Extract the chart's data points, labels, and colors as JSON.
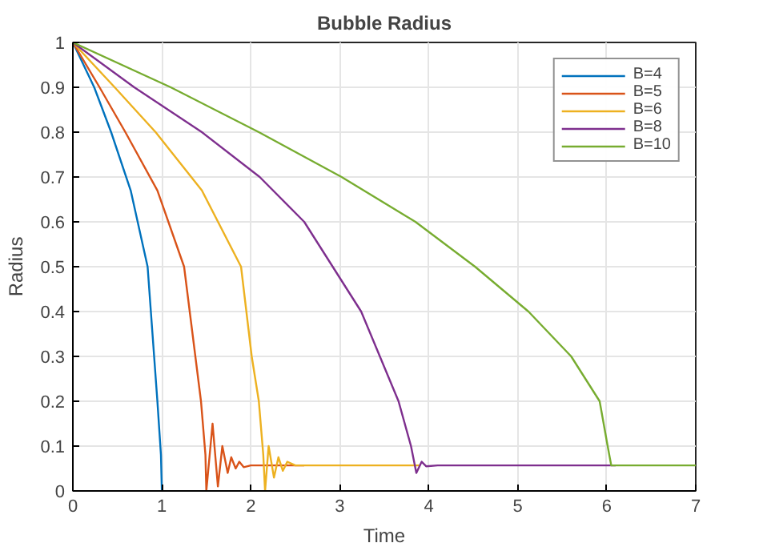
{
  "chart_data": {
    "type": "line",
    "title": "Bubble Radius",
    "xlabel": "Time",
    "ylabel": "Radius",
    "xlim": [
      0,
      7
    ],
    "ylim": [
      0,
      1
    ],
    "xticks": [
      0,
      1,
      2,
      3,
      4,
      5,
      6,
      7
    ],
    "yticks": [
      0,
      0.1,
      0.2,
      0.3,
      0.4,
      0.5,
      0.6,
      0.7,
      0.8,
      0.9,
      1
    ],
    "grid": true,
    "legend": "top right",
    "marker": "none",
    "line_style": "solid",
    "series": [
      {
        "name": "B=4",
        "color": "#0072bd",
        "x": [
          0,
          0.24,
          0.43,
          0.65,
          0.84,
          0.95,
          0.99,
          1.0
        ],
        "values": [
          1,
          0.9,
          0.8,
          0.67,
          0.5,
          0.2,
          0.08,
          0
        ]
      },
      {
        "name": "B=5",
        "color": "#d95319",
        "x": [
          0,
          0.3,
          0.59,
          0.95,
          1.25,
          1.44,
          1.49,
          1.5,
          1.57,
          1.63,
          1.68,
          1.74,
          1.78,
          1.83,
          1.87,
          1.92,
          2.0,
          2.2,
          2.6
        ],
        "values": [
          1,
          0.9,
          0.8,
          0.67,
          0.5,
          0.2,
          0.08,
          0,
          0.15,
          0.01,
          0.1,
          0.04,
          0.075,
          0.05,
          0.065,
          0.053,
          0.057,
          0.057,
          0.057
        ]
      },
      {
        "name": "B=6",
        "color": "#edb120",
        "x": [
          0,
          0.47,
          0.93,
          1.45,
          1.89,
          2.01,
          2.09,
          2.14,
          2.16,
          2.2,
          2.26,
          2.31,
          2.36,
          2.41,
          2.5,
          2.8,
          3.9
        ],
        "values": [
          1,
          0.9,
          0.8,
          0.67,
          0.5,
          0.3,
          0.2,
          0.08,
          0,
          0.1,
          0.03,
          0.075,
          0.045,
          0.065,
          0.057,
          0.057,
          0.057
        ]
      },
      {
        "name": "B=8",
        "color": "#7e2f8e",
        "x": [
          0,
          0.69,
          1.45,
          2.1,
          2.6,
          3.24,
          3.66,
          3.8,
          3.86,
          3.92,
          3.97,
          4.1,
          6.1
        ],
        "values": [
          1,
          0.9,
          0.8,
          0.7,
          0.6,
          0.4,
          0.2,
          0.1,
          0.04,
          0.065,
          0.055,
          0.057,
          0.057
        ]
      },
      {
        "name": "B=10",
        "color": "#77ac30",
        "x": [
          0,
          1.1,
          2.09,
          3.02,
          3.85,
          4.52,
          5.12,
          5.6,
          5.92,
          6.01,
          6.05,
          6.5,
          7
        ],
        "values": [
          1,
          0.9,
          0.8,
          0.7,
          0.6,
          0.5,
          0.4,
          0.3,
          0.2,
          0.1,
          0.057,
          0.057,
          0.057
        ]
      }
    ]
  }
}
